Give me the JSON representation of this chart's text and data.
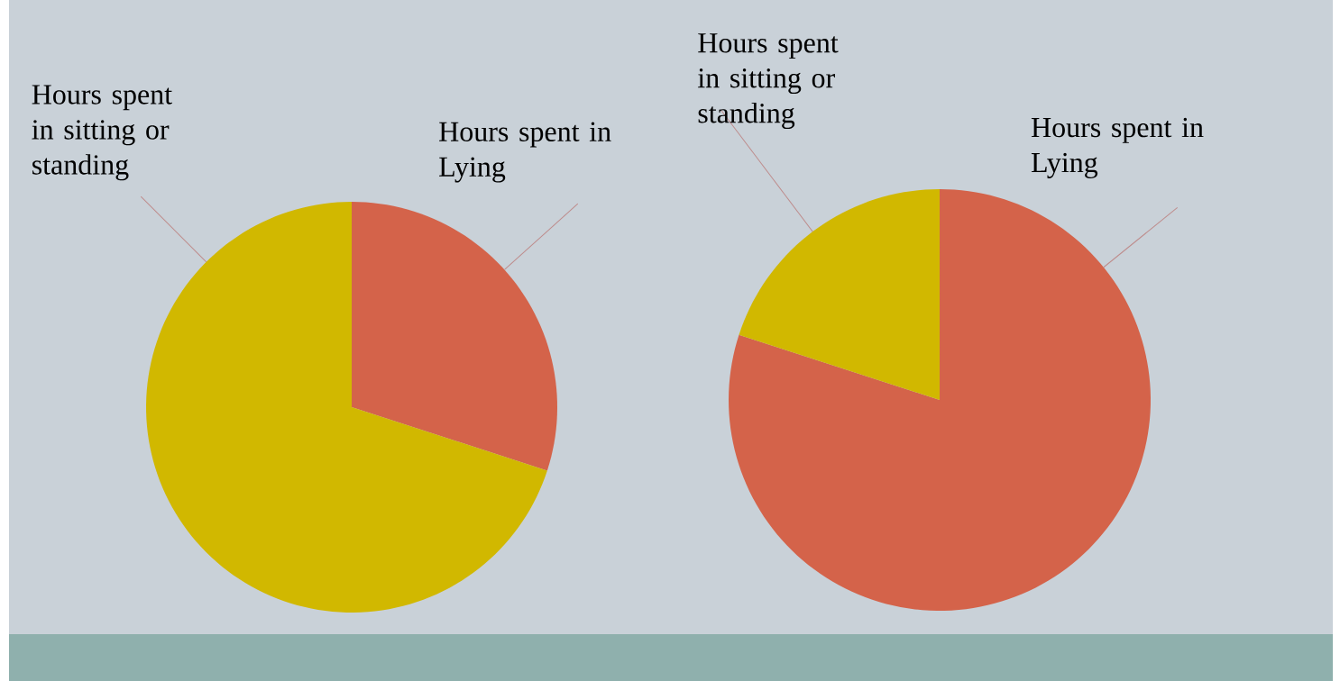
{
  "chart_data": [
    {
      "type": "pie",
      "categories": [
        "Hours spent in Lying",
        "Hours spent in sitting or standing"
      ],
      "values": [
        30,
        70
      ],
      "colors": [
        "#d4634a",
        "#d1b800"
      ]
    },
    {
      "type": "pie",
      "categories": [
        "Hours spent in Lying",
        "Hours spent in sitting or standing"
      ],
      "values": [
        80,
        20
      ],
      "colors": [
        "#d4634a",
        "#d1b800"
      ]
    }
  ]
}
